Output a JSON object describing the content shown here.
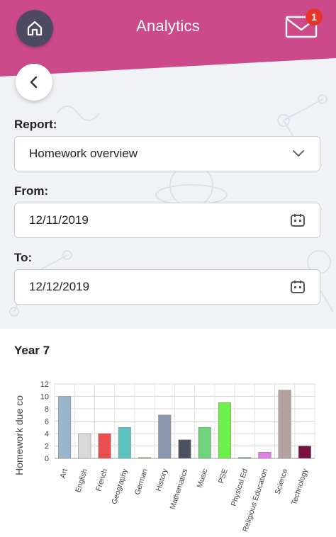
{
  "header": {
    "title": "Analytics",
    "mail_badge": "1",
    "home_icon": "home-icon",
    "mail_icon": "mail-icon",
    "band_color": "#cc4a8a"
  },
  "form": {
    "report_label": "Report:",
    "report_value": "Homework overview",
    "from_label": "From:",
    "from_value": "12/11/2019",
    "to_label": "To:",
    "to_value": "12/12/2019"
  },
  "chart_data": {
    "type": "bar",
    "title": "Year 7",
    "ylabel": "Homework due co",
    "xlabel": "",
    "ylim": [
      0,
      12
    ],
    "yticks": [
      0,
      2,
      4,
      6,
      8,
      10,
      12
    ],
    "grid": true,
    "categories": [
      "Art",
      "English",
      "French",
      "Geography",
      "German",
      "History",
      "Mathematics",
      "Music",
      "PSE",
      "Physical Ed",
      "Religious Education",
      "Science",
      "Technology"
    ],
    "values": [
      10,
      4,
      4,
      5,
      0,
      7,
      3,
      5,
      9,
      0,
      1,
      11,
      2
    ],
    "colors": [
      "#9ab5cc",
      "#d9d9d9",
      "#e94d4d",
      "#5cc3c0",
      "#e8a020",
      "#8c97ad",
      "#4a5060",
      "#6fd37c",
      "#6ef04a",
      "#2aa050",
      "#e07ee8",
      "#b3a29e",
      "#7a1040"
    ]
  }
}
